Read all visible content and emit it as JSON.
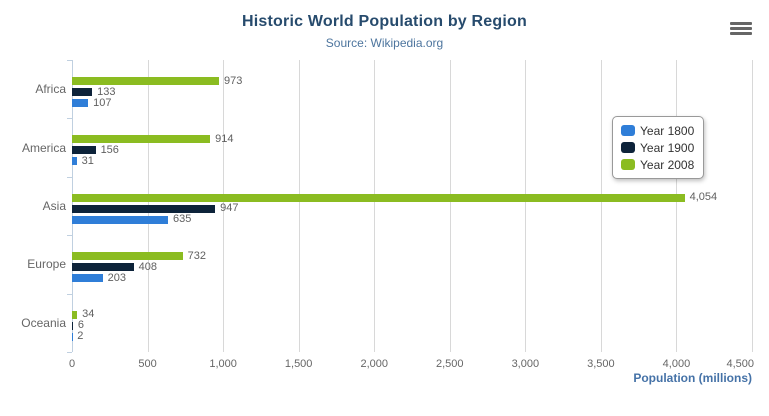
{
  "chart_data": {
    "type": "bar",
    "orientation": "horizontal",
    "title": "Historic World Population by Region",
    "subtitle": "Source: Wikipedia.org",
    "xlabel": "Population (millions)",
    "ylabel": "",
    "categories": [
      "Africa",
      "America",
      "Asia",
      "Europe",
      "Oceania"
    ],
    "series": [
      {
        "name": "Year 1800",
        "color": "#2f7ed8",
        "values": [
          107,
          31,
          635,
          203,
          2
        ]
      },
      {
        "name": "Year 1900",
        "color": "#0d233a",
        "values": [
          133,
          156,
          947,
          408,
          6
        ]
      },
      {
        "name": "Year 2008",
        "color": "#8bbc21",
        "values": [
          973,
          914,
          4054,
          732,
          34
        ]
      }
    ],
    "series_order_top_to_bottom": [
      "Year 2008",
      "Year 1900",
      "Year 1800"
    ],
    "data_labels": [
      "973",
      "133",
      "107",
      "914",
      "156",
      "31",
      "4,054",
      "947",
      "635",
      "732",
      "408",
      "203",
      "34",
      "6",
      "2"
    ],
    "xlim": [
      0,
      4500
    ],
    "xticks": [
      0,
      500,
      1000,
      1500,
      2000,
      2500,
      3000,
      3500,
      4000,
      4500
    ],
    "xtick_labels": [
      "0",
      "500",
      "1,000",
      "1,500",
      "2,000",
      "2,500",
      "3,000",
      "3,500",
      "4,000",
      "4,500"
    ],
    "grid": true,
    "legend": {
      "position": "right-floating",
      "entries": [
        "Year 1800",
        "Year 1900",
        "Year 2008"
      ]
    }
  },
  "colors": {
    "title": "#274b6d",
    "subtitle": "#4d759e",
    "axis_title": "#4572a7",
    "grid_line": "#d8d8d8",
    "axis_line": "#c0d0e0",
    "tick_label": "#666666",
    "data_label": "#606060",
    "legend_text": "#333333",
    "legend_border": "#999999",
    "menu_icon": "#666666"
  },
  "menu": {
    "name": "hamburger-menu-icon"
  }
}
